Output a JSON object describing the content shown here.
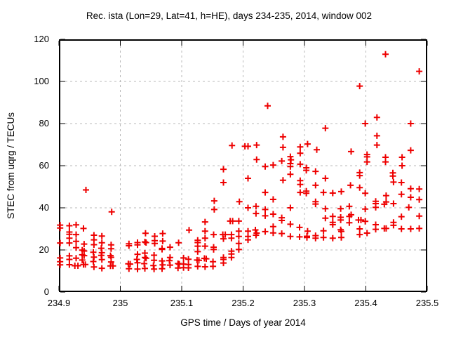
{
  "window": {
    "background": "#ffffff"
  },
  "chart_data": {
    "type": "scatter",
    "title": "Rec. ista (Lon=29, Lat=41, h=HE), days 234-235, 2014, window 002",
    "xlabel": "GPS time / Days of year 2014",
    "ylabel": "STEC from uqrg / TECUs",
    "xlim": [
      234.9,
      235.5
    ],
    "ylim": [
      0,
      120
    ],
    "grid": true,
    "legend_position": "none",
    "xticks": [
      {
        "value": 234.9,
        "label": "234.9"
      },
      {
        "value": 235.0,
        "label": "235"
      },
      {
        "value": 235.1,
        "label": "235.1"
      },
      {
        "value": 235.2,
        "label": "235.2"
      },
      {
        "value": 235.3,
        "label": "235.3"
      },
      {
        "value": 235.4,
        "label": "235.4"
      },
      {
        "value": 235.5,
        "label": "235.5"
      }
    ],
    "yticks": [
      {
        "value": 0,
        "label": "0"
      },
      {
        "value": 20,
        "label": "20"
      },
      {
        "value": 40,
        "label": "40"
      },
      {
        "value": 60,
        "label": "60"
      },
      {
        "value": 80,
        "label": "80"
      },
      {
        "value": 100,
        "label": "100"
      },
      {
        "value": 120,
        "label": "120"
      }
    ],
    "marker": {
      "symbol": "plus",
      "color": "#ee0000",
      "size": 9,
      "stroke_width": 2
    },
    "colors": {
      "grid": "#b9b9b9",
      "axis": "#000000",
      "text": "#000000"
    },
    "points": [
      [
        234.902,
        31.8
      ],
      [
        234.902,
        30.4
      ],
      [
        234.902,
        23.3
      ],
      [
        234.902,
        16.2
      ],
      [
        234.902,
        14.4
      ],
      [
        234.902,
        12.9
      ],
      [
        234.917,
        31.5
      ],
      [
        234.917,
        28.5
      ],
      [
        234.917,
        27.4
      ],
      [
        234.917,
        25.6
      ],
      [
        234.917,
        23.3
      ],
      [
        234.917,
        17.2
      ],
      [
        234.917,
        15.5
      ],
      [
        234.917,
        13.0
      ],
      [
        234.928,
        31.9
      ],
      [
        234.928,
        27.3
      ],
      [
        234.928,
        24.1
      ],
      [
        234.928,
        21.1
      ],
      [
        234.928,
        16.1
      ],
      [
        234.926,
        12.5
      ],
      [
        234.931,
        12.5
      ],
      [
        234.944,
        48.5
      ],
      [
        234.94,
        30.2
      ],
      [
        234.941,
        22.8
      ],
      [
        234.938,
        19.9
      ],
      [
        234.941,
        19.5
      ],
      [
        234.938,
        17.7
      ],
      [
        234.941,
        17.3
      ],
      [
        234.938,
        15.2
      ],
      [
        234.94,
        13.1
      ],
      [
        234.943,
        13.1
      ],
      [
        234.957,
        27.0
      ],
      [
        234.957,
        24.8
      ],
      [
        234.957,
        22.5
      ],
      [
        234.956,
        18.9
      ],
      [
        234.957,
        16.6
      ],
      [
        234.956,
        14.5
      ],
      [
        234.957,
        11.9
      ],
      [
        234.97,
        26.6
      ],
      [
        234.97,
        23.4
      ],
      [
        234.969,
        20.8
      ],
      [
        234.97,
        18.7
      ],
      [
        234.969,
        17.4
      ],
      [
        234.97,
        15.4
      ],
      [
        234.97,
        11.3
      ],
      [
        234.986,
        38.1
      ],
      [
        234.985,
        22.4
      ],
      [
        234.985,
        20.6
      ],
      [
        234.984,
        17.3
      ],
      [
        234.985,
        16.5
      ],
      [
        234.985,
        14.3
      ],
      [
        234.984,
        12.4
      ],
      [
        234.988,
        12.4
      ],
      [
        235.014,
        22.9
      ],
      [
        235.014,
        22.0
      ],
      [
        235.013,
        13.4
      ],
      [
        235.016,
        13.3
      ],
      [
        235.014,
        11.1
      ],
      [
        235.028,
        23.5
      ],
      [
        235.028,
        22.4
      ],
      [
        235.028,
        17.9
      ],
      [
        235.027,
        15.5
      ],
      [
        235.028,
        13.9
      ],
      [
        235.028,
        10.9
      ],
      [
        235.041,
        27.9
      ],
      [
        235.04,
        23.8
      ],
      [
        235.042,
        23.5
      ],
      [
        235.04,
        18.5
      ],
      [
        235.04,
        16.4
      ],
      [
        235.042,
        16.1
      ],
      [
        235.039,
        13.5
      ],
      [
        235.04,
        11.2
      ],
      [
        235.056,
        26.5
      ],
      [
        235.056,
        24.4
      ],
      [
        235.056,
        23.1
      ],
      [
        235.055,
        17.5
      ],
      [
        235.055,
        15.1
      ],
      [
        235.054,
        12.6
      ],
      [
        235.055,
        10.9
      ],
      [
        235.069,
        27.8
      ],
      [
        235.069,
        24.2
      ],
      [
        235.068,
        20.7
      ],
      [
        235.068,
        20.3
      ],
      [
        235.068,
        14.8
      ],
      [
        235.069,
        12.9
      ],
      [
        235.068,
        11.1
      ],
      [
        235.081,
        21.3
      ],
      [
        235.081,
        16.4
      ],
      [
        235.08,
        14.9
      ],
      [
        235.081,
        12.8
      ],
      [
        235.095,
        23.4
      ],
      [
        235.094,
        13.5
      ],
      [
        235.096,
        13.3
      ],
      [
        235.094,
        11.4
      ],
      [
        235.182,
        69.6
      ],
      [
        235.168,
        58.3
      ],
      [
        235.168,
        52.0
      ],
      [
        235.153,
        43.3
      ],
      [
        235.194,
        42.9
      ],
      [
        235.153,
        39.2
      ],
      [
        235.138,
        33.3
      ],
      [
        235.179,
        33.7
      ],
      [
        235.183,
        33.7
      ],
      [
        235.193,
        33.7
      ],
      [
        235.112,
        29.4
      ],
      [
        235.138,
        28.9
      ],
      [
        235.193,
        28.9
      ],
      [
        235.152,
        27.3
      ],
      [
        235.167,
        27.3
      ],
      [
        235.171,
        27.3
      ],
      [
        235.181,
        27.3
      ],
      [
        235.193,
        26.4
      ],
      [
        235.138,
        25.6
      ],
      [
        235.168,
        25.3
      ],
      [
        235.181,
        25.6
      ],
      [
        235.126,
        24.6
      ],
      [
        235.126,
        23.5
      ],
      [
        235.193,
        23.1
      ],
      [
        235.126,
        21.8
      ],
      [
        235.138,
        21.8
      ],
      [
        235.152,
        21.3
      ],
      [
        235.152,
        20.2
      ],
      [
        235.181,
        19.4
      ],
      [
        235.193,
        20.2
      ],
      [
        235.126,
        19.2
      ],
      [
        235.181,
        18.1
      ],
      [
        235.181,
        16.4
      ],
      [
        235.103,
        16.2
      ],
      [
        235.111,
        15.6
      ],
      [
        235.125,
        15.2
      ],
      [
        235.128,
        15.1
      ],
      [
        235.137,
        16.0
      ],
      [
        235.14,
        15.8
      ],
      [
        235.168,
        16.4
      ],
      [
        235.168,
        15.5
      ],
      [
        235.151,
        14.4
      ],
      [
        235.168,
        13.8
      ],
      [
        235.103,
        13.3
      ],
      [
        235.111,
        13.1
      ],
      [
        235.126,
        12.2
      ],
      [
        235.138,
        12.0
      ],
      [
        235.151,
        12.2
      ],
      [
        235.103,
        11.6
      ],
      [
        235.111,
        11.5
      ],
      [
        235.24,
        88.4
      ],
      [
        235.265,
        73.7
      ],
      [
        235.222,
        69.8
      ],
      [
        235.208,
        69.2
      ],
      [
        235.203,
        69.2
      ],
      [
        235.265,
        68.7
      ],
      [
        235.293,
        68.9
      ],
      [
        235.293,
        65.9
      ],
      [
        235.222,
        62.9
      ],
      [
        235.263,
        62.2
      ],
      [
        235.277,
        64.3
      ],
      [
        235.278,
        62.8
      ],
      [
        235.277,
        61.0
      ],
      [
        235.249,
        60.3
      ],
      [
        235.293,
        60.7
      ],
      [
        235.236,
        59.6
      ],
      [
        235.277,
        59.6
      ],
      [
        235.277,
        55.9
      ],
      [
        235.208,
        54.0
      ],
      [
        235.265,
        53.1
      ],
      [
        235.293,
        52.9
      ],
      [
        235.293,
        51.1
      ],
      [
        235.236,
        47.3
      ],
      [
        235.293,
        47.3
      ],
      [
        235.249,
        44.0
      ],
      [
        235.208,
        40.0
      ],
      [
        235.221,
        40.7
      ],
      [
        235.236,
        39.2
      ],
      [
        235.277,
        40.0
      ],
      [
        235.221,
        37.3
      ],
      [
        235.249,
        37.0
      ],
      [
        235.236,
        36.2
      ],
      [
        235.263,
        35.3
      ],
      [
        235.263,
        34.0
      ],
      [
        235.249,
        31.1
      ],
      [
        235.277,
        32.2
      ],
      [
        235.292,
        30.7
      ],
      [
        235.208,
        28.9
      ],
      [
        235.22,
        29.5
      ],
      [
        235.222,
        28.0
      ],
      [
        235.221,
        27.0
      ],
      [
        235.236,
        28.7
      ],
      [
        235.263,
        27.8
      ],
      [
        235.277,
        26.4
      ],
      [
        235.292,
        26.2
      ],
      [
        235.208,
        26.4
      ],
      [
        235.208,
        24.8
      ],
      [
        235.249,
        28.1
      ],
      [
        235.39,
        97.8
      ],
      [
        235.334,
        77.8
      ],
      [
        235.305,
        70.3
      ],
      [
        235.32,
        67.6
      ],
      [
        235.376,
        66.7
      ],
      [
        235.303,
        59.0
      ],
      [
        235.303,
        57.8
      ],
      [
        235.318,
        57.3
      ],
      [
        235.334,
        54.0
      ],
      [
        235.39,
        56.7
      ],
      [
        235.39,
        55.3
      ],
      [
        235.318,
        50.7
      ],
      [
        235.375,
        50.7
      ],
      [
        235.39,
        49.6
      ],
      [
        235.303,
        47.9
      ],
      [
        235.303,
        46.9
      ],
      [
        235.331,
        47.3
      ],
      [
        235.346,
        47.0
      ],
      [
        235.36,
        47.7
      ],
      [
        235.318,
        42.9
      ],
      [
        235.318,
        41.8
      ],
      [
        235.334,
        39.6
      ],
      [
        235.359,
        39.6
      ],
      [
        235.373,
        40.7
      ],
      [
        235.376,
        36.7
      ],
      [
        235.334,
        35.1
      ],
      [
        235.346,
        35.9
      ],
      [
        235.346,
        33.1
      ],
      [
        235.346,
        32.0
      ],
      [
        235.359,
        35.5
      ],
      [
        235.359,
        34.2
      ],
      [
        235.373,
        35.9
      ],
      [
        235.373,
        32.9
      ],
      [
        235.388,
        34.2
      ],
      [
        235.392,
        34.2
      ],
      [
        235.359,
        29.6
      ],
      [
        235.39,
        30.0
      ],
      [
        235.39,
        27.3
      ],
      [
        235.305,
        28.9
      ],
      [
        235.304,
        26.5
      ],
      [
        235.304,
        25.9
      ],
      [
        235.318,
        26.8
      ],
      [
        235.318,
        25.6
      ],
      [
        235.331,
        29.1
      ],
      [
        235.331,
        25.9
      ],
      [
        235.346,
        25.6
      ],
      [
        235.36,
        28.8
      ],
      [
        235.36,
        25.9
      ],
      [
        235.432,
        112.9
      ],
      [
        235.487,
        104.8
      ],
      [
        235.418,
        82.9
      ],
      [
        235.399,
        80.0
      ],
      [
        235.473,
        80.0
      ],
      [
        235.418,
        74.2
      ],
      [
        235.418,
        69.8
      ],
      [
        235.402,
        65.3
      ],
      [
        235.402,
        64.2
      ],
      [
        235.402,
        61.8
      ],
      [
        235.432,
        64.0
      ],
      [
        235.432,
        61.8
      ],
      [
        235.459,
        64.0
      ],
      [
        235.459,
        60.0
      ],
      [
        235.473,
        67.3
      ],
      [
        235.444,
        56.6
      ],
      [
        235.444,
        55.1
      ],
      [
        235.445,
        52.2
      ],
      [
        235.458,
        52.0
      ],
      [
        235.473,
        49.1
      ],
      [
        235.487,
        48.9
      ],
      [
        235.399,
        46.9
      ],
      [
        235.458,
        46.4
      ],
      [
        235.473,
        45.0
      ],
      [
        235.487,
        43.9
      ],
      [
        235.433,
        45.8
      ],
      [
        235.433,
        42.8
      ],
      [
        235.416,
        43.1
      ],
      [
        235.416,
        42.0
      ],
      [
        235.416,
        40.2
      ],
      [
        235.43,
        41.7
      ],
      [
        235.445,
        42.0
      ],
      [
        235.399,
        39.4
      ],
      [
        235.47,
        40.2
      ],
      [
        235.458,
        35.8
      ],
      [
        235.487,
        36.1
      ],
      [
        235.399,
        33.6
      ],
      [
        235.416,
        32.0
      ],
      [
        235.416,
        29.8
      ],
      [
        235.445,
        33.1
      ],
      [
        235.445,
        31.7
      ],
      [
        235.43,
        30.2
      ],
      [
        235.433,
        30.2
      ],
      [
        235.458,
        30.0
      ],
      [
        235.473,
        30.0
      ],
      [
        235.487,
        30.2
      ],
      [
        235.402,
        28.0
      ]
    ]
  }
}
